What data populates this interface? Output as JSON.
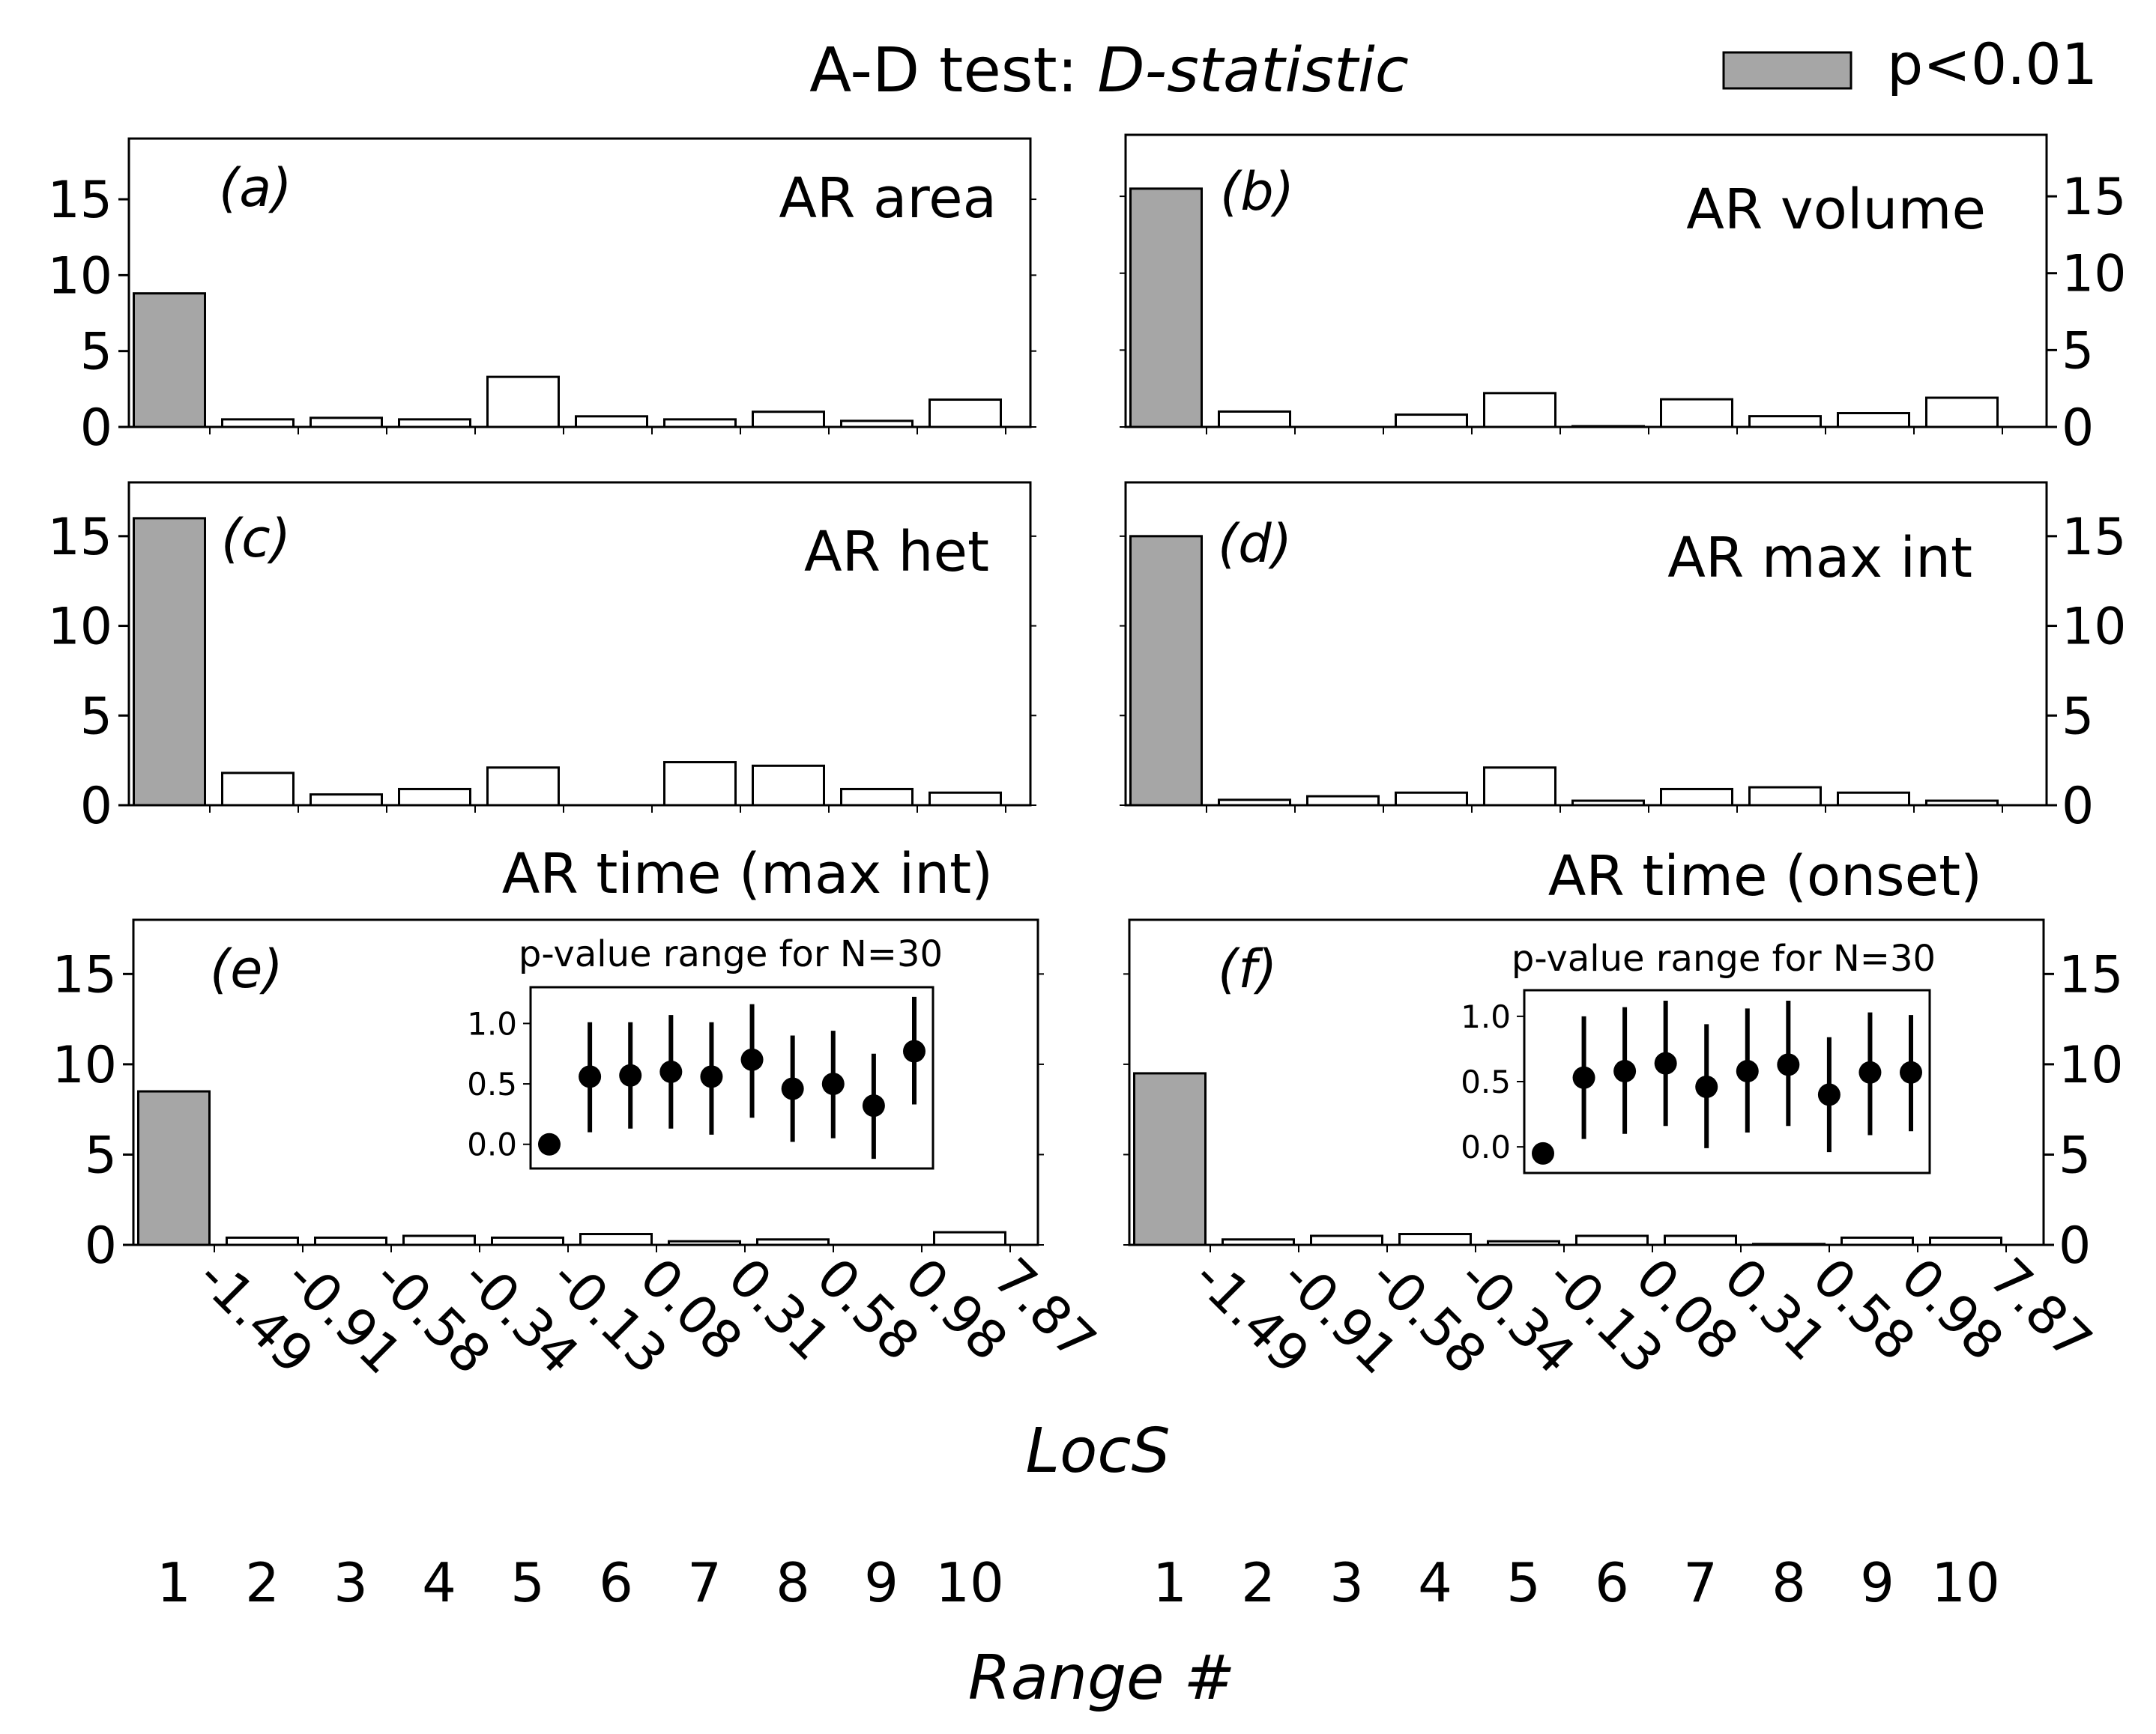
{
  "figure": {
    "title_prefix": "A-D test: ",
    "title_italic": "D-statistic",
    "legend_label": "p<0.01",
    "x_axis_label": "LocS",
    "range_axis_label": "Range #",
    "range_numbers": [
      "1",
      "2",
      "3",
      "4",
      "5",
      "6",
      "7",
      "8",
      "9",
      "10"
    ],
    "locs_ticks": [
      "-1.49",
      "-0.91",
      "-0.58",
      "-0.34",
      "-0.13",
      "0.08",
      "0.31",
      "0.58",
      "0.98",
      "7.87"
    ],
    "colors": {
      "significant": "#a6a6a6",
      "normal": "#ffffff",
      "edge": "#000000"
    }
  },
  "chart_data": [
    {
      "type": "bar",
      "panel": "(a)",
      "title": "AR area",
      "title_position": "inside-top-right",
      "categories": [
        "1",
        "2",
        "3",
        "4",
        "5",
        "6",
        "7",
        "8",
        "9",
        "10"
      ],
      "values": [
        8.8,
        0.5,
        0.6,
        0.5,
        3.3,
        0.7,
        0.5,
        1.0,
        0.4,
        1.8
      ],
      "significant": [
        true,
        false,
        false,
        false,
        false,
        false,
        false,
        false,
        false,
        false
      ],
      "ylim": [
        0,
        19
      ],
      "yticks": [
        0,
        5,
        10,
        15
      ],
      "yaxis_side": "left",
      "xlabel": "",
      "ylabel": ""
    },
    {
      "type": "bar",
      "panel": "(b)",
      "title": "AR volume",
      "title_position": "inside-top-right",
      "categories": [
        "1",
        "2",
        "3",
        "4",
        "5",
        "6",
        "7",
        "8",
        "9",
        "10"
      ],
      "values": [
        15.5,
        1.0,
        0.0,
        0.8,
        2.2,
        0.05,
        1.8,
        0.7,
        0.9,
        1.9
      ],
      "significant": [
        true,
        false,
        false,
        false,
        false,
        false,
        false,
        false,
        false,
        false
      ],
      "ylim": [
        0,
        19
      ],
      "yticks": [
        0,
        5,
        10,
        15
      ],
      "yaxis_side": "right",
      "xlabel": "",
      "ylabel": ""
    },
    {
      "type": "bar",
      "panel": "(c)",
      "title": "AR het",
      "title_position": "inside-top-right",
      "categories": [
        "1",
        "2",
        "3",
        "4",
        "5",
        "6",
        "7",
        "8",
        "9",
        "10"
      ],
      "values": [
        16.0,
        1.8,
        0.6,
        0.9,
        2.1,
        0.0,
        2.4,
        2.2,
        0.9,
        0.7
      ],
      "significant": [
        true,
        false,
        false,
        false,
        false,
        false,
        false,
        false,
        false,
        false
      ],
      "ylim": [
        0,
        18
      ],
      "yticks": [
        0,
        5,
        10,
        15
      ],
      "yaxis_side": "left",
      "xlabel": "",
      "ylabel": ""
    },
    {
      "type": "bar",
      "panel": "(d)",
      "title": "AR max int",
      "title_position": "inside-top-right",
      "categories": [
        "1",
        "2",
        "3",
        "4",
        "5",
        "6",
        "7",
        "8",
        "9",
        "10"
      ],
      "values": [
        15.0,
        0.3,
        0.5,
        0.7,
        2.1,
        0.25,
        0.9,
        1.0,
        0.7,
        0.25
      ],
      "significant": [
        true,
        false,
        false,
        false,
        false,
        false,
        false,
        false,
        false,
        false
      ],
      "ylim": [
        0,
        18
      ],
      "yticks": [
        0,
        5,
        10,
        15
      ],
      "yaxis_side": "right",
      "xlabel": "",
      "ylabel": ""
    },
    {
      "type": "bar",
      "panel": "(e)",
      "title": "AR time (max int)",
      "title_position": "above",
      "categories": [
        "1",
        "2",
        "3",
        "4",
        "5",
        "6",
        "7",
        "8",
        "9",
        "10"
      ],
      "values": [
        8.5,
        0.4,
        0.4,
        0.5,
        0.4,
        0.6,
        0.2,
        0.3,
        0.0,
        0.7
      ],
      "significant": [
        true,
        false,
        false,
        false,
        false,
        false,
        false,
        false,
        false,
        false
      ],
      "ylim": [
        0,
        18
      ],
      "yticks": [
        0,
        5,
        10,
        15
      ],
      "yaxis_side": "left",
      "xlabel": "",
      "ylabel": "",
      "inset": {
        "type": "scatter",
        "title": "p-value range for N=30",
        "x": [
          1,
          2,
          3,
          4,
          5,
          6,
          7,
          8,
          9,
          10
        ],
        "y": [
          0.0,
          0.56,
          0.57,
          0.6,
          0.56,
          0.7,
          0.46,
          0.5,
          0.32,
          0.77
        ],
        "ylow": [
          0.0,
          0.1,
          0.13,
          0.13,
          0.08,
          0.22,
          0.02,
          0.05,
          -0.12,
          0.33
        ],
        "yhigh": [
          0.0,
          1.01,
          1.01,
          1.07,
          1.01,
          1.16,
          0.9,
          0.94,
          0.75,
          1.22
        ],
        "ylim": [
          -0.2,
          1.3
        ],
        "yticks": [
          "0.0",
          "0.5",
          "1.0"
        ]
      }
    },
    {
      "type": "bar",
      "panel": "(f)",
      "title": "AR time (onset)",
      "title_position": "above",
      "categories": [
        "1",
        "2",
        "3",
        "4",
        "5",
        "6",
        "7",
        "8",
        "9",
        "10"
      ],
      "values": [
        9.5,
        0.3,
        0.5,
        0.6,
        0.2,
        0.5,
        0.5,
        0.05,
        0.4,
        0.4
      ],
      "significant": [
        true,
        false,
        false,
        false,
        false,
        false,
        false,
        false,
        false,
        false
      ],
      "ylim": [
        0,
        18
      ],
      "yticks": [
        0,
        5,
        10,
        15
      ],
      "yaxis_side": "right",
      "xlabel": "",
      "ylabel": "",
      "inset": {
        "type": "scatter",
        "title": "p-value range for N=30",
        "x": [
          1,
          2,
          3,
          4,
          5,
          6,
          7,
          8,
          9,
          10
        ],
        "y": [
          -0.05,
          0.53,
          0.58,
          0.64,
          0.46,
          0.58,
          0.63,
          0.4,
          0.57,
          0.57
        ],
        "ylow": [
          -0.05,
          0.06,
          0.1,
          0.16,
          -0.01,
          0.11,
          0.16,
          -0.04,
          0.09,
          0.12
        ],
        "yhigh": [
          -0.05,
          1.0,
          1.07,
          1.12,
          0.94,
          1.06,
          1.12,
          0.84,
          1.03,
          1.01
        ],
        "ylim": [
          -0.2,
          1.2
        ],
        "yticks": [
          "0.0",
          "0.5",
          "1.0"
        ]
      }
    }
  ]
}
